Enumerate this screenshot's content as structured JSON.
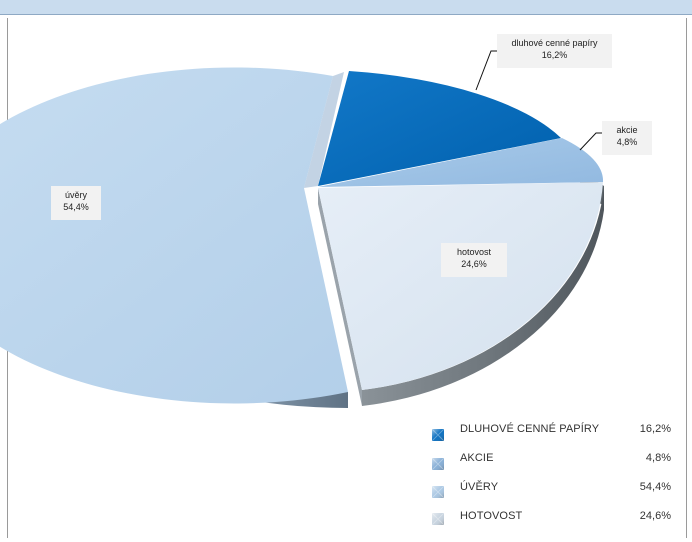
{
  "colors": {
    "header": "#c9dcee",
    "dluhove": "#0a6fc0",
    "akcie": "#9fc3e6",
    "uvery": "#bdd7ee",
    "hotovost": "#dde8f3",
    "side_dark": "#6f777e"
  },
  "chart_data": {
    "type": "pie",
    "title": "",
    "slices": [
      {
        "key": "dluhove",
        "label": "dluhové cenné papíry",
        "value": 16.2,
        "value_label": "16,2%"
      },
      {
        "key": "akcie",
        "label": "akcie",
        "value": 4.8,
        "value_label": "4,8%"
      },
      {
        "key": "hotovost",
        "label": "hotovost",
        "value": 24.6,
        "value_label": "24,6%"
      },
      {
        "key": "uvery",
        "label": "úvěry",
        "value": 54.4,
        "value_label": "54,4%"
      }
    ],
    "legend": {
      "placement": "bottom-right",
      "items": [
        {
          "key": "dluhove",
          "name": "DLUHOVÉ CENNÉ PAPÍRY",
          "value": "16,2%"
        },
        {
          "key": "akcie",
          "name": "AKCIE",
          "value": "4,8%"
        },
        {
          "key": "uvery",
          "name": "ÚVĚRY",
          "value": "54,4%"
        },
        {
          "key": "hotovost",
          "name": "HOTOVOST",
          "value": "24,6%"
        }
      ]
    }
  }
}
